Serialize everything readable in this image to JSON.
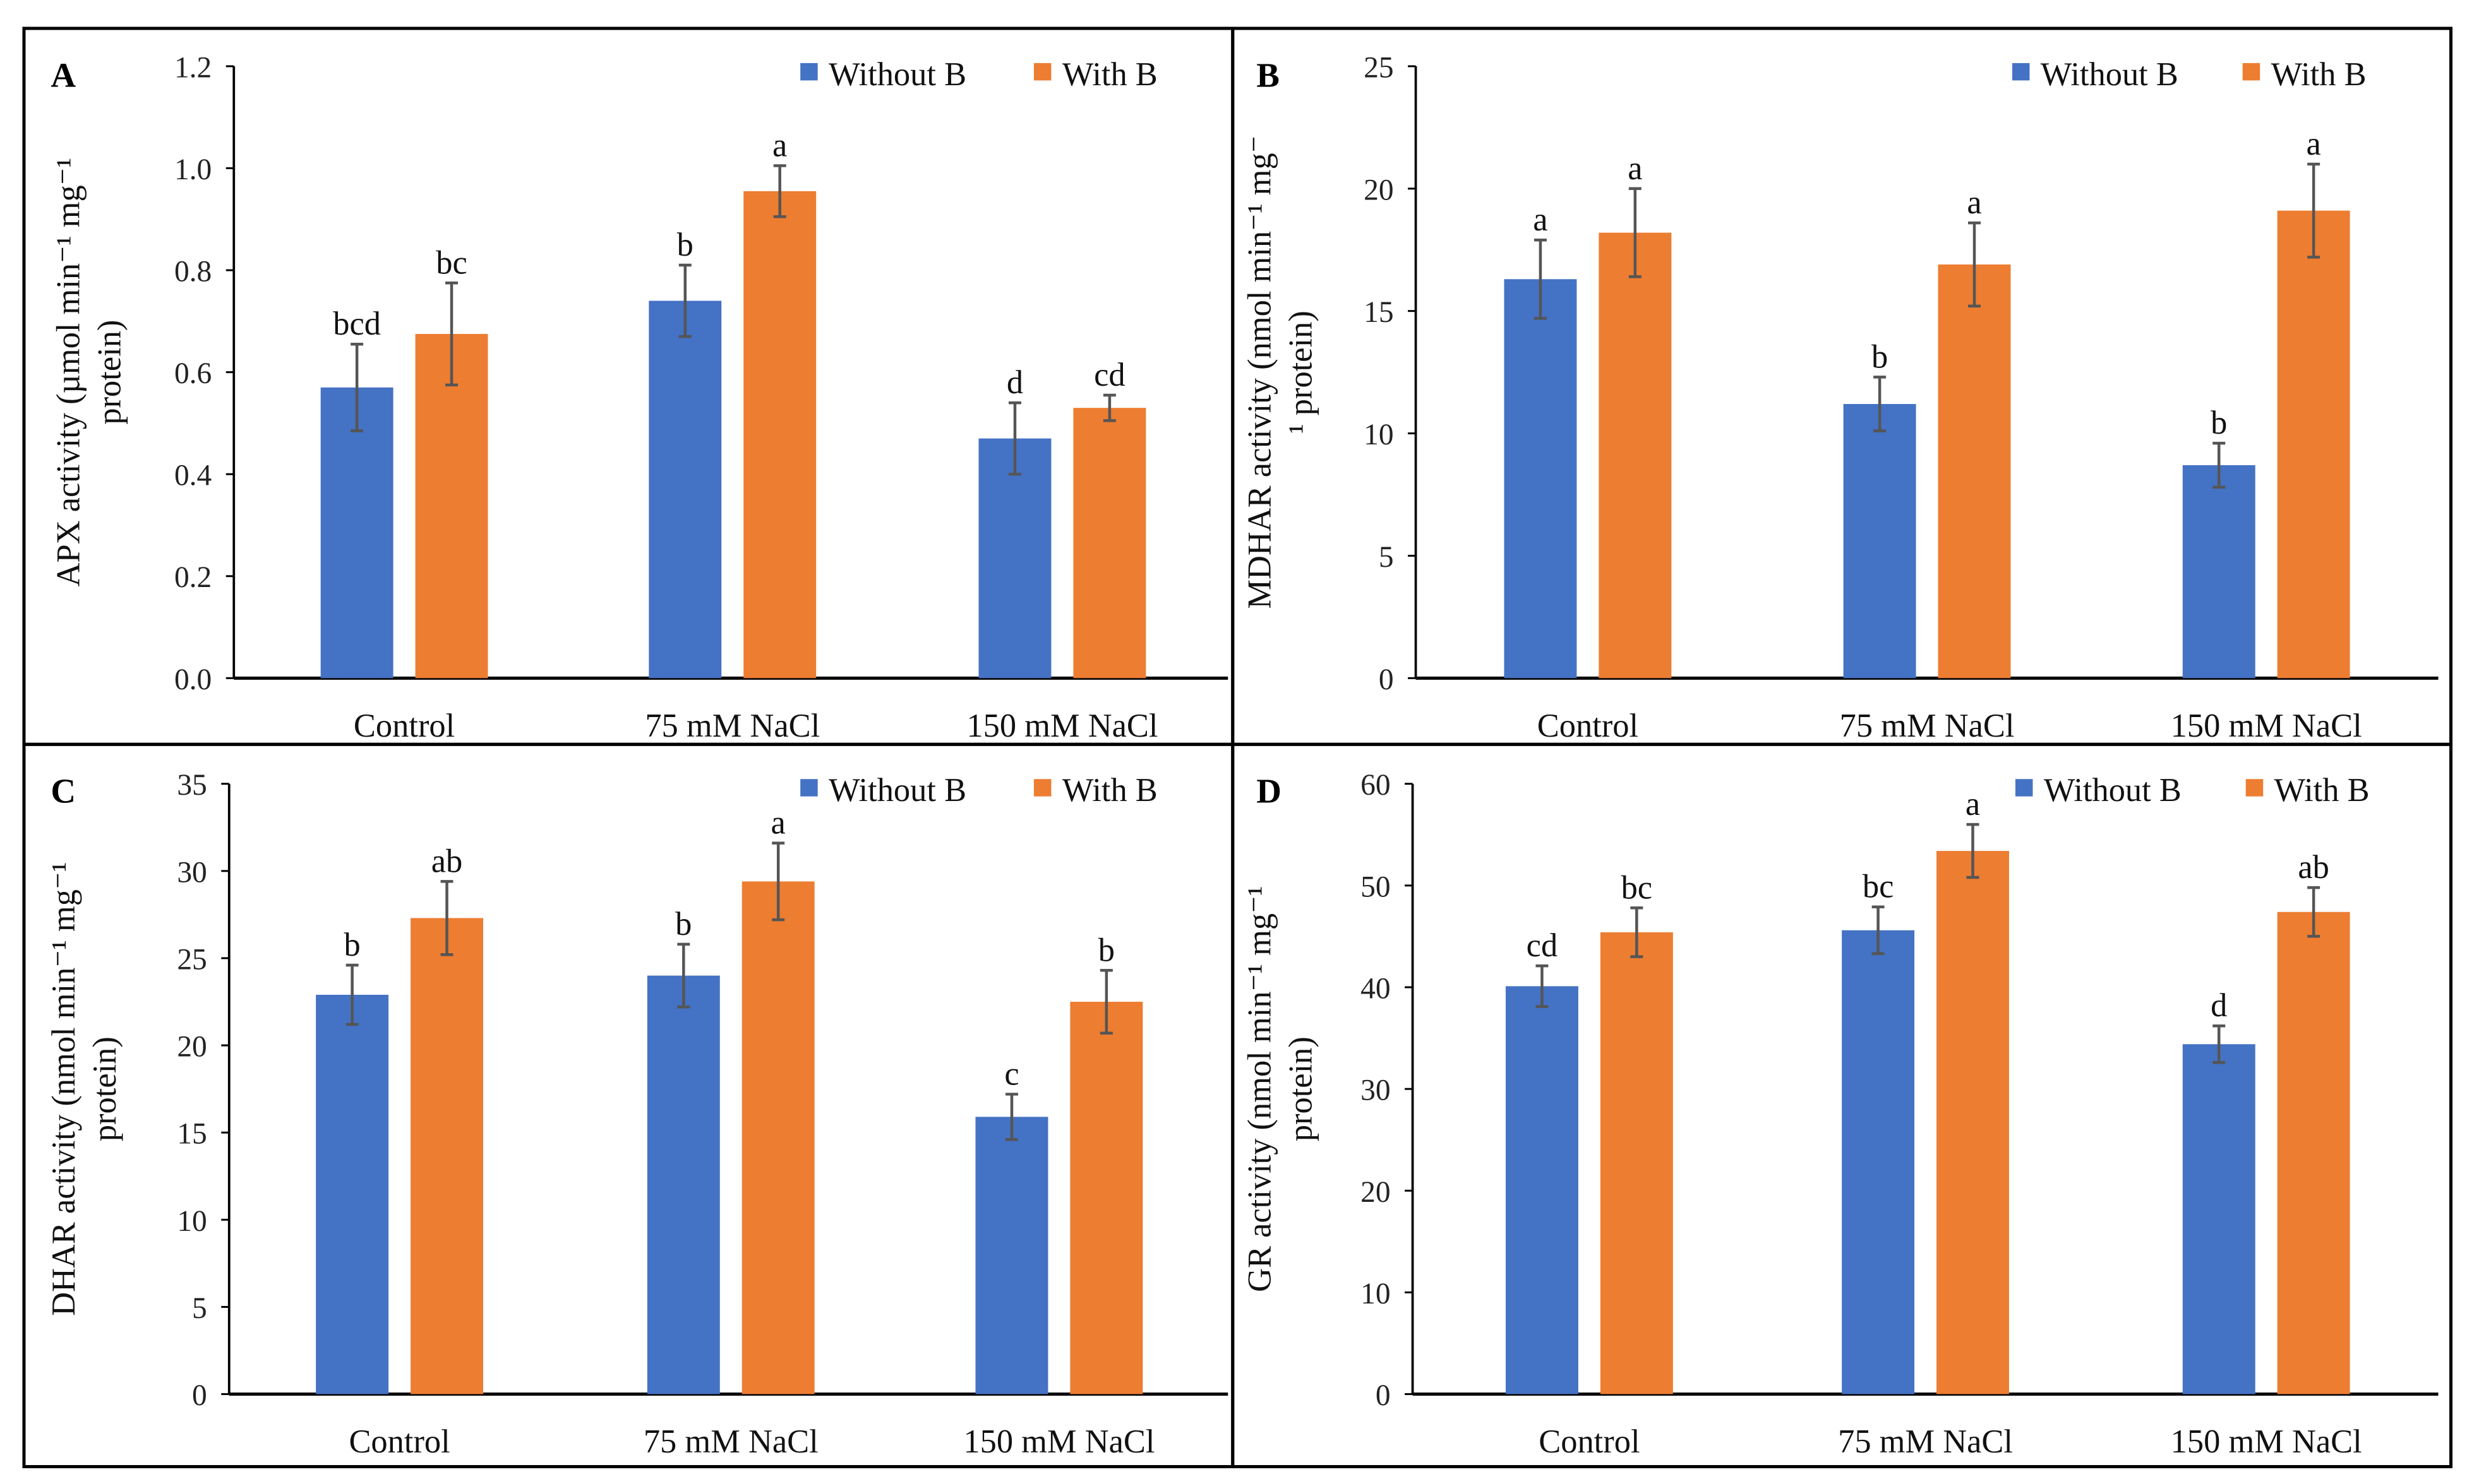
{
  "colors": {
    "without": "#4472C4",
    "with": "#ED7D31",
    "error": "#555555"
  },
  "chart_data": [
    {
      "type": "bar",
      "panel": "A",
      "categories": [
        "Control",
        "75 mM NaCl",
        "150 mM NaCl"
      ],
      "ylabel": [
        "APX activity (µmol min⁻¹ mg⁻¹",
        "protein)"
      ],
      "ylim": [
        0,
        1.2
      ],
      "yticks": [
        0,
        0.2,
        0.4,
        0.6,
        0.8,
        1.0,
        1.2
      ],
      "tick_decimals": 1,
      "legend_position": "top-right",
      "series": [
        {
          "name": "Without B",
          "values": [
            0.57,
            0.74,
            0.47
          ],
          "errors": [
            0.085,
            0.07,
            0.07
          ],
          "letters": [
            "bcd",
            "b",
            "d"
          ]
        },
        {
          "name": "With B",
          "values": [
            0.675,
            0.955,
            0.53
          ],
          "errors": [
            0.1,
            0.05,
            0.025
          ],
          "letters": [
            "bc",
            "a",
            "cd"
          ]
        }
      ]
    },
    {
      "type": "bar",
      "panel": "B",
      "categories": [
        "Control",
        "75 mM NaCl",
        "150 mM NaCl"
      ],
      "ylabel": [
        "MDHAR activity (nmol min⁻¹ mg⁻",
        "¹ protein)"
      ],
      "ylim": [
        0,
        25
      ],
      "yticks": [
        0,
        5,
        10,
        15,
        20,
        25
      ],
      "tick_decimals": 0,
      "legend_position": "top-right",
      "series": [
        {
          "name": "Without B",
          "values": [
            16.3,
            11.2,
            8.7
          ],
          "errors": [
            1.6,
            1.1,
            0.9
          ],
          "letters": [
            "a",
            "b",
            "b"
          ]
        },
        {
          "name": "With B",
          "values": [
            18.2,
            16.9,
            19.1
          ],
          "errors": [
            1.8,
            1.7,
            1.9
          ],
          "letters": [
            "a",
            "a",
            "a"
          ]
        }
      ]
    },
    {
      "type": "bar",
      "panel": "C",
      "categories": [
        "Control",
        "75 mM NaCl",
        "150 mM NaCl"
      ],
      "ylabel": [
        "DHAR activity (nmol min⁻¹ mg⁻¹",
        "protein)"
      ],
      "ylim": [
        0,
        35
      ],
      "yticks": [
        0,
        5,
        10,
        15,
        20,
        25,
        30,
        35
      ],
      "tick_decimals": 0,
      "legend_position": "top-right",
      "series": [
        {
          "name": "Without B",
          "values": [
            22.9,
            24.0,
            15.9
          ],
          "errors": [
            1.7,
            1.8,
            1.3
          ],
          "letters": [
            "b",
            "b",
            "c"
          ]
        },
        {
          "name": "With B",
          "values": [
            27.3,
            29.4,
            22.5
          ],
          "errors": [
            2.1,
            2.2,
            1.8
          ],
          "letters": [
            "ab",
            "a",
            "b"
          ]
        }
      ]
    },
    {
      "type": "bar",
      "panel": "D",
      "categories": [
        "Control",
        "75 mM NaCl",
        "150 mM NaCl"
      ],
      "ylabel": [
        "GR activity (nmol min⁻¹ mg⁻¹",
        "protein)"
      ],
      "ylim": [
        0,
        60
      ],
      "yticks": [
        0,
        10,
        20,
        30,
        40,
        50,
        60
      ],
      "tick_decimals": 0,
      "legend_position": "top-right",
      "series": [
        {
          "name": "Without B",
          "values": [
            40.1,
            45.6,
            34.4
          ],
          "errors": [
            2.0,
            2.3,
            1.8
          ],
          "letters": [
            "cd",
            "bc",
            "d"
          ]
        },
        {
          "name": "With B",
          "values": [
            45.4,
            53.4,
            47.4
          ],
          "errors": [
            2.4,
            2.6,
            2.4
          ],
          "letters": [
            "bc",
            "a",
            "ab"
          ]
        }
      ]
    }
  ]
}
